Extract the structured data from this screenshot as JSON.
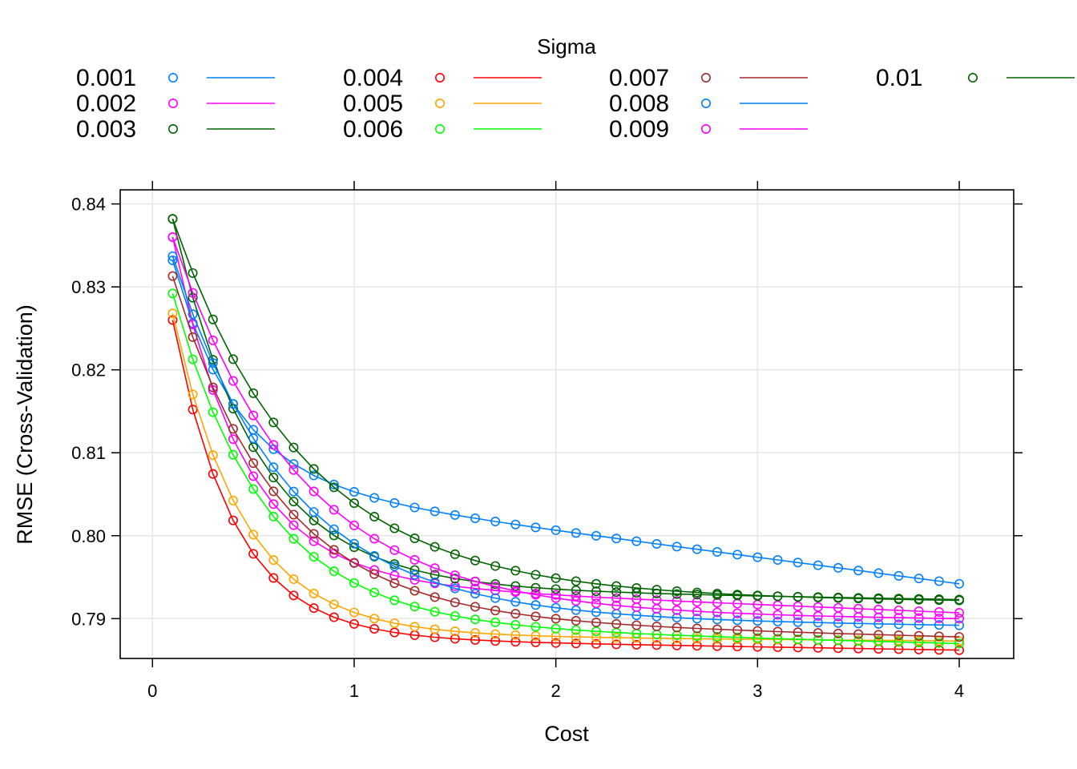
{
  "chart_data": {
    "type": "line",
    "xlabel": "Cost",
    "ylabel": "RMSE (Cross-Validation)",
    "xlim": [
      -0.16,
      4.27
    ],
    "ylim": [
      0.7852,
      0.8417
    ],
    "x_ticks": [
      0,
      1,
      2,
      3,
      4
    ],
    "y_ticks": [
      0.79,
      0.8,
      0.81,
      0.82,
      0.83,
      0.84
    ],
    "x_tick_labels": [
      "0",
      "1",
      "2",
      "3",
      "4"
    ],
    "y_tick_labels": [
      "0.79",
      "0.80",
      "0.81",
      "0.82",
      "0.83",
      "0.84"
    ],
    "grid": true,
    "legend": {
      "title": "Sigma",
      "placement": "top"
    },
    "x": [
      0.1,
      0.2,
      0.3,
      0.4,
      0.5,
      0.6,
      0.7,
      0.8,
      0.9,
      1.0,
      1.1,
      1.2,
      1.3,
      1.4,
      1.5,
      1.6,
      1.7,
      1.8,
      1.9,
      2.0,
      2.1,
      2.2,
      2.3,
      2.4,
      2.5,
      2.6,
      2.7,
      2.8,
      2.9,
      3.0,
      3.1,
      3.2,
      3.3,
      3.4,
      3.5,
      3.6,
      3.7,
      3.8,
      3.9,
      4.0
    ],
    "series": [
      {
        "name": "0.001",
        "color": "#0080ff",
        "start": 0.8332,
        "end": 0.7942,
        "k": 3.2,
        "slope": 0.0032
      },
      {
        "name": "0.002",
        "color": "#ff00ff",
        "start": 0.836,
        "end": 0.7907,
        "k": 2.9,
        "slope": 0.001
      },
      {
        "name": "0.003",
        "color": "#006400",
        "start": 0.8382,
        "end": 0.7923,
        "k": 2.4,
        "slope": 0.0004
      },
      {
        "name": "0.004",
        "color": "#ff0000",
        "start": 0.826,
        "end": 0.7862,
        "k": 3.3,
        "slope": 0.0004
      },
      {
        "name": "0.005",
        "color": "#ffa500",
        "start": 0.8268,
        "end": 0.7873,
        "k": 2.9,
        "slope": 0.0002
      },
      {
        "name": "0.006",
        "color": "#00ff00",
        "start": 0.8292,
        "end": 0.787,
        "k": 2.2,
        "slope": 0.0006
      },
      {
        "name": "0.007",
        "color": "#a52a2a",
        "start": 0.8313,
        "end": 0.7878,
        "k": 1.95,
        "slope": 0.0006
      },
      {
        "name": "0.008",
        "color": "#0080ff",
        "start": 0.8337,
        "end": 0.7892,
        "k": 1.75,
        "slope": 0.0003
      },
      {
        "name": "0.009",
        "color": "#ff00ff",
        "start": 0.836,
        "end": 0.79,
        "k": 1.6,
        "slope": 0.0002
      },
      {
        "name": "0.01",
        "color": "#006400",
        "start": 0.8382,
        "end": 0.7922,
        "k": 1.55,
        "slope": 0.0002
      }
    ]
  }
}
